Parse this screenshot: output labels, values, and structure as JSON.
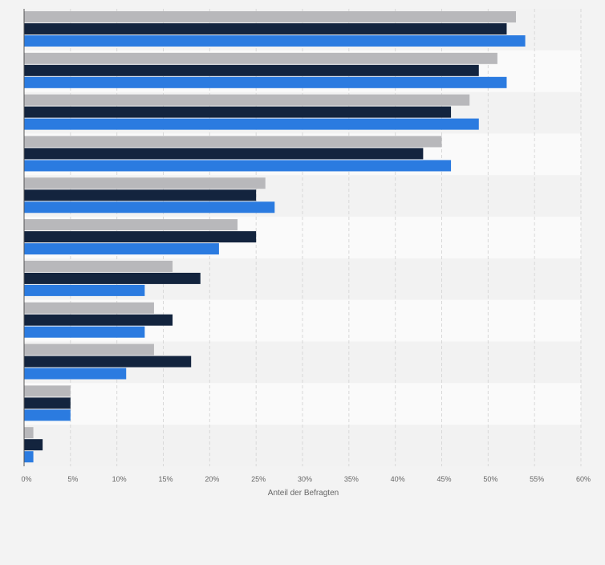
{
  "chart_data": {
    "type": "bar",
    "orientation": "horizontal",
    "xlabel": "Anteil der Befragten",
    "ylabel": "",
    "xlim": [
      0,
      60
    ],
    "ticks": [
      "0%",
      "5%",
      "10%",
      "15%",
      "20%",
      "25%",
      "30%",
      "35%",
      "40%",
      "45%",
      "50%",
      "55%",
      "60%"
    ],
    "grid": true,
    "categories": [
      "",
      "",
      "",
      "",
      "",
      "",
      "",
      "",
      "",
      "",
      ""
    ],
    "series": [
      {
        "color": "#b8b8bb",
        "values": [
          53,
          51,
          48,
          45,
          26,
          23,
          16,
          14,
          14,
          5,
          1
        ]
      },
      {
        "color": "#13243e",
        "values": [
          52,
          49,
          46,
          43,
          25,
          25,
          19,
          16,
          18,
          5,
          2
        ]
      },
      {
        "color": "#2b7be0",
        "values": [
          54,
          52,
          49,
          46,
          27,
          21,
          13,
          13,
          11,
          5,
          1
        ]
      }
    ]
  }
}
